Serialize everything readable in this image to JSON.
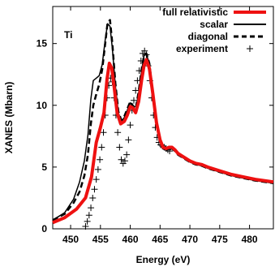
{
  "chart_data": {
    "type": "line",
    "annotation": "Ti",
    "xlabel": "Energy (eV)",
    "ylabel": "XANES (Mbarn)",
    "xlim": [
      447,
      484
    ],
    "ylim": [
      0,
      18
    ],
    "xticks": [
      450,
      455,
      460,
      465,
      470,
      475,
      480
    ],
    "yticks": [
      0,
      5,
      10,
      15
    ],
    "legend_position": "top-right",
    "series": [
      {
        "name": "full relativistic",
        "style": "solid",
        "color": "#ee1111",
        "x": [
          447,
          449,
          451,
          452.5,
          453.5,
          454.3,
          455,
          455.6,
          456.1,
          456.5,
          456.9,
          457.3,
          457.8,
          458.4,
          459,
          459.5,
          460,
          460.4,
          460.9,
          461.4,
          461.9,
          462.3,
          462.7,
          463.2,
          463.8,
          464.4,
          465,
          465.5,
          466,
          466.5,
          467,
          467.5,
          468,
          469,
          470,
          471,
          472,
          473,
          475,
          477,
          479,
          481,
          484
        ],
        "y": [
          0.5,
          0.9,
          1.6,
          2.5,
          4.2,
          7.0,
          8.2,
          9.4,
          12.1,
          13.4,
          13.0,
          11.5,
          9.4,
          8.5,
          8.7,
          9.2,
          9.9,
          9.8,
          9.4,
          10.3,
          12.0,
          13.2,
          13.7,
          13.0,
          10.9,
          8.6,
          7.2,
          6.6,
          6.5,
          6.6,
          6.6,
          6.4,
          6.1,
          5.8,
          5.5,
          5.3,
          5.2,
          5.0,
          4.7,
          4.4,
          4.2,
          4.0,
          3.8
        ]
      },
      {
        "name": "scalar",
        "style": "solid",
        "color": "#000000",
        "x": [
          447,
          449,
          450.5,
          451.5,
          452.3,
          452.9,
          453.4,
          453.8,
          454.3,
          454.8,
          455.3,
          455.8,
          456.2,
          456.6,
          457,
          457.5,
          458,
          458.5,
          459,
          459.5,
          460,
          460.4,
          460.9,
          461.4,
          461.9,
          462.3,
          462.7,
          463.2,
          463.8,
          464.4,
          465,
          465.5,
          466,
          466.5,
          467,
          467.5,
          468,
          469,
          470,
          471,
          472,
          473,
          475,
          477,
          479,
          481,
          484
        ],
        "y": [
          0.7,
          1.3,
          2.4,
          3.8,
          5.5,
          7.6,
          10.5,
          12.0,
          12.2,
          12.4,
          13.3,
          15.3,
          16.6,
          16.4,
          14.6,
          11.6,
          9.4,
          8.7,
          9.0,
          9.6,
          10.2,
          9.9,
          9.6,
          11.0,
          12.8,
          14.0,
          14.2,
          13.3,
          11.0,
          8.6,
          7.1,
          6.5,
          6.4,
          6.5,
          6.5,
          6.3,
          6.0,
          5.7,
          5.4,
          5.2,
          5.1,
          4.9,
          4.6,
          4.3,
          4.1,
          3.9,
          3.7
        ]
      },
      {
        "name": "diagonal",
        "style": "dashed",
        "color": "#000000",
        "x": [
          447,
          449,
          450.5,
          451.5,
          452.3,
          452.9,
          453.4,
          453.8,
          454.3,
          454.8,
          455.3,
          455.8,
          456.2,
          456.6,
          457,
          457.5,
          458,
          458.5,
          459,
          459.5,
          460,
          460.4,
          460.9,
          461.4,
          461.9,
          462.3,
          462.7,
          463.2,
          463.8,
          464.4,
          465,
          465.5,
          466,
          466.5,
          467,
          467.5,
          468,
          469,
          470,
          471,
          472,
          473,
          475,
          477,
          479,
          481,
          484
        ],
        "y": [
          0.7,
          1.2,
          2.1,
          3.0,
          4.3,
          6.0,
          8.5,
          10.0,
          10.9,
          11.7,
          12.9,
          15.0,
          16.7,
          16.9,
          15.0,
          11.8,
          9.5,
          8.8,
          9.1,
          9.7,
          10.3,
          10.0,
          9.7,
          11.1,
          12.9,
          14.0,
          14.2,
          13.4,
          11.0,
          8.6,
          7.1,
          6.5,
          6.4,
          6.5,
          6.5,
          6.3,
          6.0,
          5.7,
          5.4,
          5.2,
          5.1,
          4.9,
          4.6,
          4.3,
          4.1,
          3.9,
          3.7
        ]
      },
      {
        "name": "experiment",
        "style": "markers",
        "color": "#000000",
        "x": [
          452.5,
          452.8,
          453.1,
          453.4,
          453.7,
          454.0,
          454.3,
          454.6,
          454.9,
          455.2,
          455.5,
          455.8,
          456.1,
          456.4,
          456.7,
          457.0,
          457.3,
          457.6,
          457.9,
          458.2,
          458.5,
          458.8,
          459.1,
          459.4,
          459.7,
          460.0,
          460.3,
          460.6,
          460.9,
          461.2,
          461.5,
          461.8,
          462.1,
          462.4,
          462.7,
          463.0,
          463.3,
          463.6,
          463.9,
          464.2,
          464.5,
          464.8,
          465.1,
          465.4,
          465.7,
          466.0,
          466.3,
          466.6
        ],
        "y": [
          0.2,
          0.6,
          1.1,
          1.7,
          2.5,
          3.2,
          4.0,
          4.8,
          5.6,
          6.6,
          7.8,
          9.2,
          10.6,
          11.6,
          12.2,
          11.9,
          10.6,
          9.2,
          7.8,
          6.6,
          5.6,
          5.3,
          5.5,
          6.0,
          7.2,
          8.4,
          9.6,
          10.4,
          11.2,
          12.0,
          12.8,
          13.6,
          14.2,
          14.4,
          14.1,
          13.2,
          12.0,
          10.6,
          9.2,
          8.2,
          7.4,
          7.0,
          6.8,
          6.7,
          6.6,
          6.5,
          6.4,
          6.3
        ]
      }
    ]
  }
}
